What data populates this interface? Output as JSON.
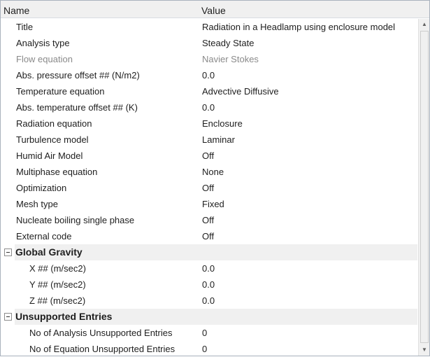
{
  "header": {
    "name": "Name",
    "value": "Value"
  },
  "rows": [
    {
      "name": "Title",
      "value": "Radiation in a Headlamp using enclosure model"
    },
    {
      "name": "Analysis type",
      "value": "Steady State"
    },
    {
      "name": "Flow equation",
      "value": "Navier Stokes",
      "disabled": true
    },
    {
      "name": "Abs. pressure offset ## (N/m2)",
      "value": "0.0"
    },
    {
      "name": "Temperature equation",
      "value": "Advective Diffusive"
    },
    {
      "name": "Abs. temperature offset ## (K)",
      "value": "0.0"
    },
    {
      "name": "Radiation equation",
      "value": "Enclosure"
    },
    {
      "name": "Turbulence model",
      "value": "Laminar"
    },
    {
      "name": "Humid Air Model",
      "value": "Off"
    },
    {
      "name": "Multiphase equation",
      "value": "None"
    },
    {
      "name": "Optimization",
      "value": "Off"
    },
    {
      "name": "Mesh type",
      "value": "Fixed"
    },
    {
      "name": "Nucleate boiling single phase",
      "value": "Off"
    },
    {
      "name": "External code",
      "value": "Off"
    }
  ],
  "groups": [
    {
      "title": "Global Gravity",
      "expanded": true,
      "rows": [
        {
          "name": "X ## (m/sec2)",
          "value": "0.0"
        },
        {
          "name": "Y ## (m/sec2)",
          "value": "0.0"
        },
        {
          "name": "Z ## (m/sec2)",
          "value": "0.0"
        }
      ]
    },
    {
      "title": "Unsupported Entries",
      "expanded": true,
      "rows": [
        {
          "name": "No of Analysis Unsupported Entries",
          "value": "0"
        },
        {
          "name": "No of Equation Unsupported Entries",
          "value": "0"
        }
      ]
    }
  ],
  "scrollbar": {
    "up_icon": "▲",
    "down_icon": "▼"
  }
}
